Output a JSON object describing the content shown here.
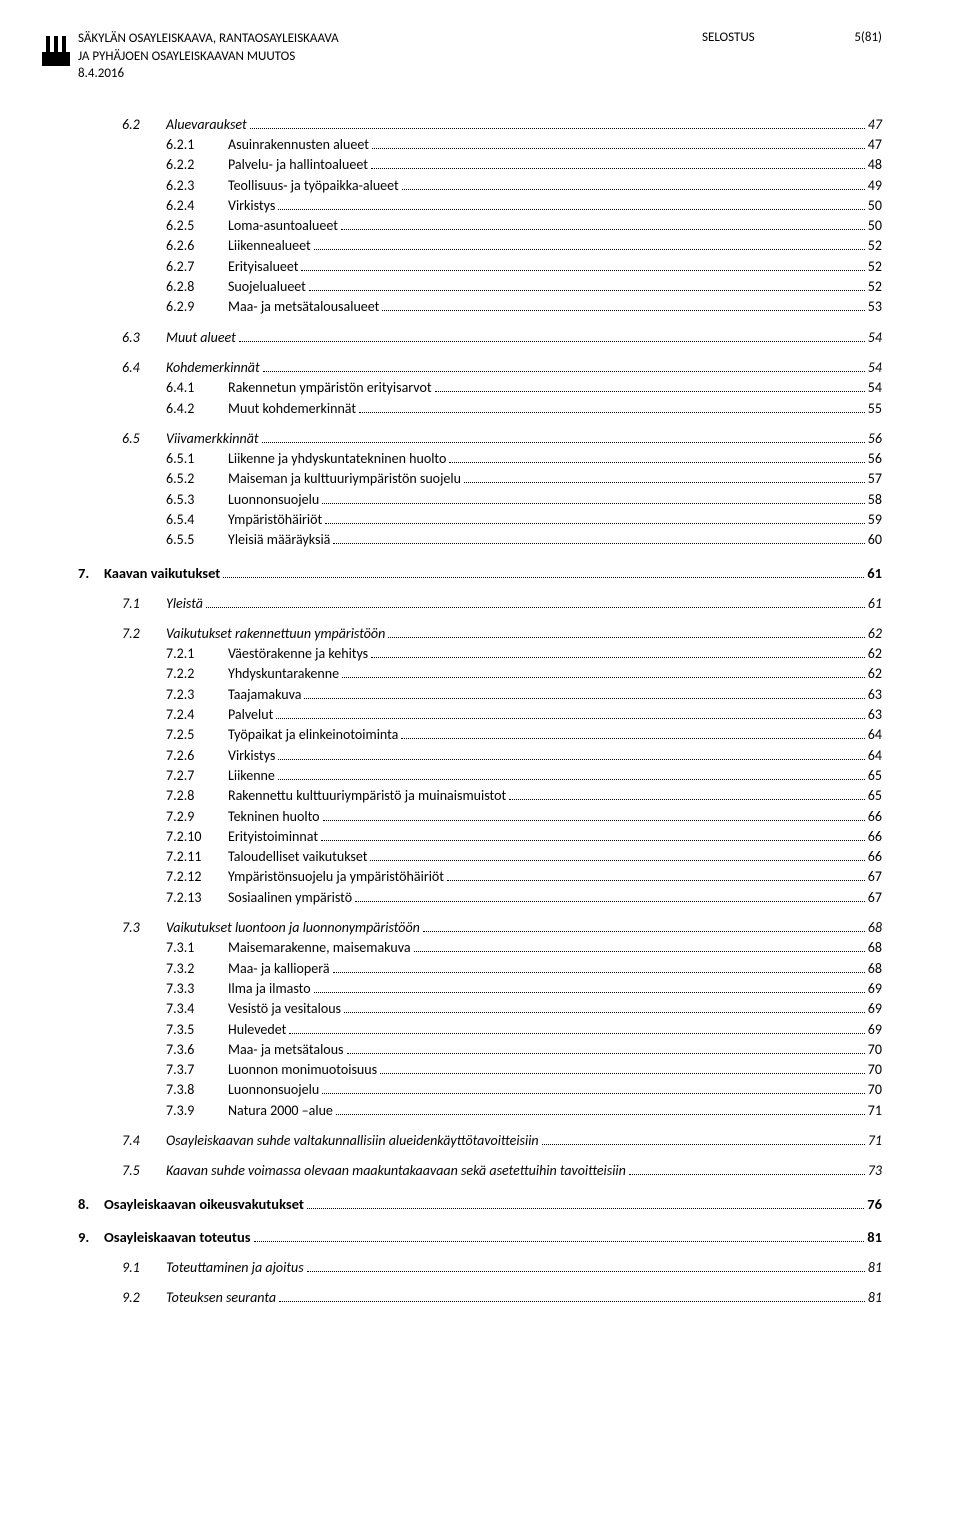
{
  "header": {
    "title_line1": "SÄKYLÄN OSAYLEISKAAVA, RANTAOSAYLEISKAAVA",
    "title_line2": "JA PYHÄJOEN OSAYLEISKAAVAN MUUTOS",
    "date": "8.4.2016",
    "doc_type": "SELOSTUS",
    "page_indicator": "5(81)"
  },
  "toc": [
    {
      "level": 1,
      "num": "6.2",
      "label": "Aluevaraukset",
      "page": "47"
    },
    {
      "level": 2,
      "num": "6.2.1",
      "label": "Asuinrakennusten alueet",
      "page": "47"
    },
    {
      "level": 2,
      "num": "6.2.2",
      "label": "Palvelu- ja hallintoalueet",
      "page": "48"
    },
    {
      "level": 2,
      "num": "6.2.3",
      "label": "Teollisuus- ja työpaikka-alueet",
      "page": "49"
    },
    {
      "level": 2,
      "num": "6.2.4",
      "label": "Virkistys",
      "page": "50"
    },
    {
      "level": 2,
      "num": "6.2.5",
      "label": "Loma-asuntoalueet",
      "page": "50"
    },
    {
      "level": 2,
      "num": "6.2.6",
      "label": "Liikennealueet",
      "page": "52"
    },
    {
      "level": 2,
      "num": "6.2.7",
      "label": "Erityisalueet",
      "page": "52"
    },
    {
      "level": 2,
      "num": "6.2.8",
      "label": "Suojelualueet",
      "page": "52"
    },
    {
      "level": 2,
      "num": "6.2.9",
      "label": "Maa- ja metsätalousalueet",
      "page": "53"
    },
    {
      "level": 1,
      "num": "6.3",
      "label": "Muut alueet",
      "page": "54"
    },
    {
      "level": 1,
      "num": "6.4",
      "label": "Kohdemerkinnät",
      "page": "54"
    },
    {
      "level": 2,
      "num": "6.4.1",
      "label": "Rakennetun ympäristön erityisarvot",
      "page": "54"
    },
    {
      "level": 2,
      "num": "6.4.2",
      "label": "Muut kohdemerkinnät",
      "page": "55"
    },
    {
      "level": 1,
      "num": "6.5",
      "label": "Viivamerkkinnät",
      "page": "56"
    },
    {
      "level": 2,
      "num": "6.5.1",
      "label": "Liikenne ja yhdyskuntatekninen huolto",
      "page": "56"
    },
    {
      "level": 2,
      "num": "6.5.2",
      "label": "Maiseman ja kulttuuriympäristön suojelu",
      "page": "57"
    },
    {
      "level": 2,
      "num": "6.5.3",
      "label": "Luonnonsuojelu",
      "page": "58"
    },
    {
      "level": 2,
      "num": "6.5.4",
      "label": "Ympäristöhäiriöt",
      "page": "59"
    },
    {
      "level": 2,
      "num": "6.5.5",
      "label": "Yleisiä määräyksiä",
      "page": "60"
    },
    {
      "level": 0,
      "num": "7.",
      "label": "Kaavan vaikutukset",
      "page": "61"
    },
    {
      "level": 1,
      "num": "7.1",
      "label": "Yleistä",
      "page": "61"
    },
    {
      "level": 1,
      "num": "7.2",
      "label": "Vaikutukset rakennettuun ympäristöön",
      "page": "62"
    },
    {
      "level": 2,
      "num": "7.2.1",
      "label": "Väestörakenne ja kehitys",
      "page": "62"
    },
    {
      "level": 2,
      "num": "7.2.2",
      "label": "Yhdyskuntarakenne",
      "page": "62"
    },
    {
      "level": 2,
      "num": "7.2.3",
      "label": "Taajamakuva",
      "page": "63"
    },
    {
      "level": 2,
      "num": "7.2.4",
      "label": "Palvelut",
      "page": "63"
    },
    {
      "level": 2,
      "num": "7.2.5",
      "label": "Työpaikat ja elinkeinotoiminta",
      "page": "64"
    },
    {
      "level": 2,
      "num": "7.2.6",
      "label": "Virkistys",
      "page": "64"
    },
    {
      "level": 2,
      "num": "7.2.7",
      "label": "Liikenne",
      "page": "65"
    },
    {
      "level": 2,
      "num": "7.2.8",
      "label": "Rakennettu kulttuuriympäristö ja muinaismuistot",
      "page": "65"
    },
    {
      "level": 2,
      "num": "7.2.9",
      "label": "Tekninen huolto",
      "page": "66"
    },
    {
      "level": 2,
      "num": "7.2.10",
      "label": "Erityistoiminnat",
      "page": "66"
    },
    {
      "level": 2,
      "num": "7.2.11",
      "label": "Taloudelliset vaikutukset",
      "page": "66"
    },
    {
      "level": 2,
      "num": "7.2.12",
      "label": "Ympäristönsuojelu ja ympäristöhäiriöt",
      "page": "67"
    },
    {
      "level": 2,
      "num": "7.2.13",
      "label": "Sosiaalinen ympäristö",
      "page": "67"
    },
    {
      "level": 1,
      "num": "7.3",
      "label": "Vaikutukset luontoon ja luonnonympäristöön",
      "page": "68"
    },
    {
      "level": 2,
      "num": "7.3.1",
      "label": "Maisemarakenne, maisemakuva",
      "page": "68"
    },
    {
      "level": 2,
      "num": "7.3.2",
      "label": "Maa- ja kallioperä",
      "page": "68"
    },
    {
      "level": 2,
      "num": "7.3.3",
      "label": "Ilma ja ilmasto",
      "page": "69"
    },
    {
      "level": 2,
      "num": "7.3.4",
      "label": "Vesistö ja vesitalous",
      "page": "69"
    },
    {
      "level": 2,
      "num": "7.3.5",
      "label": "Hulevedet",
      "page": "69"
    },
    {
      "level": 2,
      "num": "7.3.6",
      "label": "Maa- ja metsätalous",
      "page": "70"
    },
    {
      "level": 2,
      "num": "7.3.7",
      "label": "Luonnon monimuotoisuus",
      "page": "70"
    },
    {
      "level": 2,
      "num": "7.3.8",
      "label": "Luonnonsuojelu",
      "page": "70"
    },
    {
      "level": 2,
      "num": "7.3.9",
      "label": "Natura 2000 –alue",
      "page": "71"
    },
    {
      "level": 1,
      "num": "7.4",
      "label": "Osayleiskaavan suhde valtakunnallisiin alueidenkäyttötavoitteisiin",
      "page": "71"
    },
    {
      "level": 1,
      "num": "7.5",
      "label": "Kaavan suhde voimassa olevaan maakuntakaavaan sekä asetettuihin tavoitteisiin",
      "page": "73"
    },
    {
      "level": 0,
      "num": "8.",
      "label": "Osayleiskaavan oikeusvakutukset",
      "page": "76"
    },
    {
      "level": 0,
      "num": "9.",
      "label": "Osayleiskaavan toteutus",
      "page": "81"
    },
    {
      "level": 1,
      "num": "9.1",
      "label": "Toteuttaminen ja ajoitus",
      "page": "81"
    },
    {
      "level": 1,
      "num": "9.2",
      "label": "Toteuksen seuranta",
      "page": "81"
    }
  ]
}
